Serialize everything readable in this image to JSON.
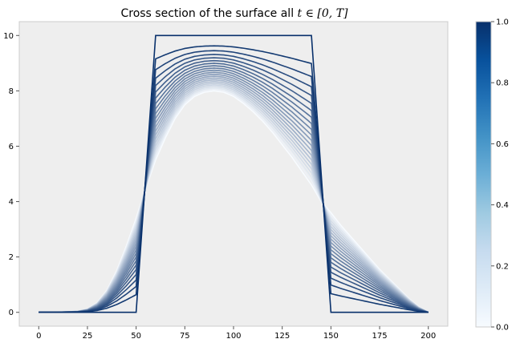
{
  "chart_data": {
    "type": "line",
    "title": "Cross section of the surface all ",
    "title_math": "t ∈ [0, T]",
    "xlabel": "",
    "ylabel": "",
    "xlim": [
      -10,
      210
    ],
    "ylim": [
      -0.5,
      10.5
    ],
    "x_ticks": [
      0,
      25,
      50,
      75,
      100,
      125,
      150,
      175,
      200
    ],
    "y_ticks": [
      0,
      2,
      4,
      6,
      8,
      10
    ],
    "grid": false,
    "background": "#eeeeee",
    "colormap": "Blues",
    "colormap_start": "#f7fbff",
    "colormap_end": "#08306b",
    "colorbar": {
      "min": 0.0,
      "max": 1.0,
      "ticks": [
        "0.0",
        "0.2",
        "0.4",
        "0.6",
        "0.8",
        "1.0"
      ]
    },
    "series_description": "family of smoothed curves from t=0 (dark, square pulse) to t=T (white, smooth hump)",
    "initial_curve": {
      "x": [
        0,
        50,
        60,
        140,
        150,
        200
      ],
      "y": [
        0,
        0,
        10,
        10,
        0,
        0
      ]
    },
    "final_curve": {
      "x": [
        0,
        10,
        20,
        25,
        30,
        35,
        40,
        45,
        50,
        55,
        60,
        65,
        70,
        75,
        80,
        85,
        90,
        95,
        100,
        105,
        110,
        115,
        120,
        125,
        130,
        135,
        140,
        145,
        150,
        155,
        160,
        165,
        170,
        175,
        180,
        185,
        190,
        195,
        200
      ],
      "y": [
        0,
        0.01,
        0.04,
        0.12,
        0.35,
        0.8,
        1.5,
        2.4,
        3.4,
        4.5,
        5.5,
        6.3,
        7.0,
        7.5,
        7.8,
        7.95,
        8.0,
        7.95,
        7.8,
        7.55,
        7.25,
        6.9,
        6.5,
        6.05,
        5.6,
        5.1,
        4.6,
        4.0,
        3.6,
        3.15,
        2.75,
        2.35,
        1.95,
        1.55,
        1.2,
        0.85,
        0.5,
        0.2,
        0.0
      ]
    },
    "num_curves": 22
  }
}
